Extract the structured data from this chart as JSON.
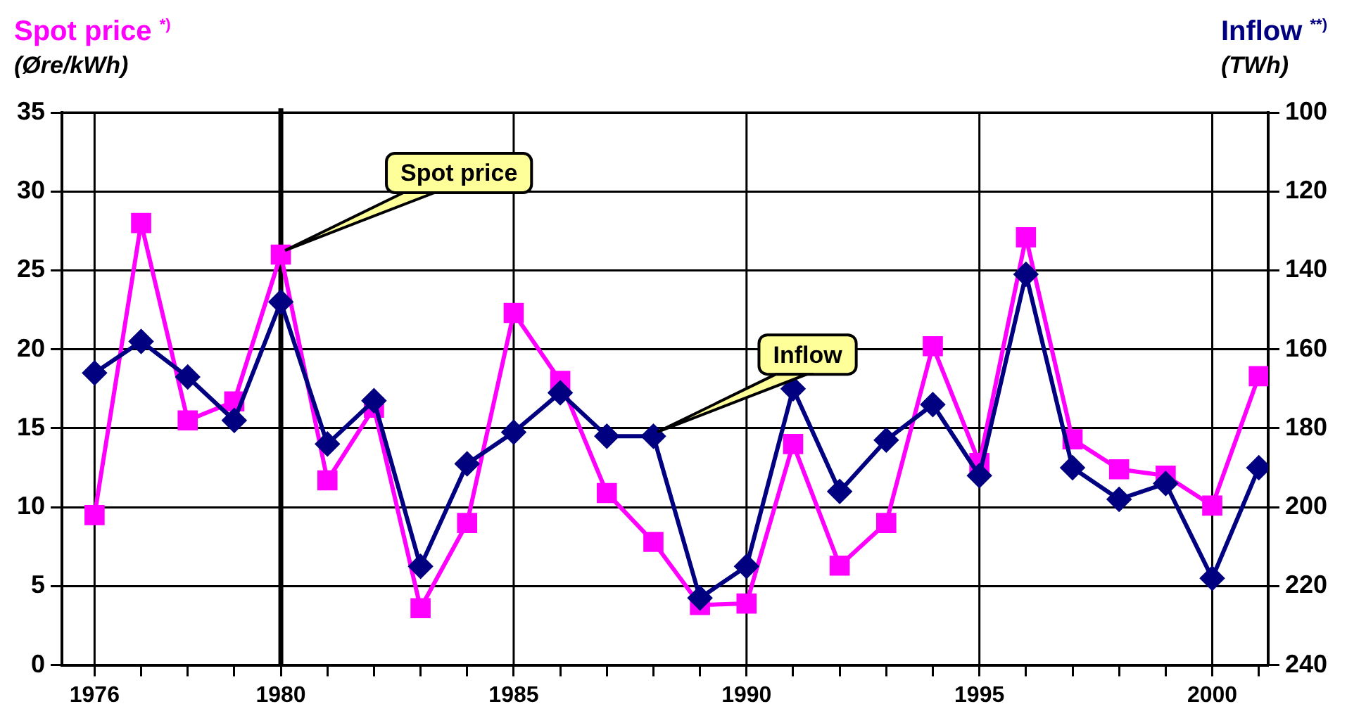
{
  "chart_data": {
    "type": "line",
    "ylabel": "Spot price $^{*)}$\n(Øre/kWh)",
    "y2label": "Inflow $^{**)}$\n(TWh)",
    "x": [
      1976,
      1977,
      1978,
      1979,
      1980,
      1981,
      1982,
      1983,
      1984,
      1985,
      1986,
      1987,
      1988,
      1989,
      1990,
      1991,
      1992,
      1993,
      1994,
      1995,
      1996,
      1997,
      1998,
      1999,
      2000,
      2001
    ],
    "series": [
      {
        "color": "#ff00ff",
        "marker": "square",
        "values": [
          9.5,
          28,
          15.5,
          16.7,
          26,
          11.7,
          16.3,
          3.6,
          9,
          22.3,
          18,
          10.9,
          7.8,
          3.8,
          3.9,
          14,
          6.3,
          9,
          20.2,
          12.8,
          27.1,
          14.3,
          12.4,
          12,
          10.1,
          18.3
        ]
      },
      {
        "color": "#000080",
        "marker": "diamond",
        "axis": "y2",
        "values": [
          166,
          158,
          167,
          178,
          148,
          184,
          173,
          215,
          189,
          181,
          171,
          182,
          182,
          223,
          215,
          170,
          196,
          183,
          174,
          192,
          141,
          190,
          198,
          194,
          218,
          190
        ]
      }
    ],
    "xlim": [
      1975.3,
      2001.2
    ],
    "xticks": [
      1976,
      {
        "value": 1977,
        "label": null
      },
      {
        "value": 1978,
        "label": null
      },
      {
        "value": 1979,
        "label": null
      },
      1980,
      {
        "value": 1981,
        "label": null
      },
      {
        "value": 1982,
        "label": null
      },
      {
        "value": 1983,
        "label": null
      },
      {
        "value": 1984,
        "label": null
      },
      1985,
      {
        "value": 1986,
        "label": null
      },
      {
        "value": 1987,
        "label": null
      },
      {
        "value": 1988,
        "label": null
      },
      {
        "value": 1989,
        "label": null
      },
      1990,
      {
        "value": 1991,
        "label": null
      },
      {
        "value": 1992,
        "label": null
      },
      {
        "value": 1993,
        "label": null
      },
      {
        "value": 1994,
        "label": null
      },
      1995,
      {
        "value": 1996,
        "label": null
      },
      {
        "value": 1997,
        "label": null
      },
      {
        "value": 1998,
        "label": null
      },
      {
        "value": 1999,
        "label": null
      },
      2000,
      {
        "value": 2001,
        "label": null
      }
    ],
    "ylim": [
      0,
      35
    ],
    "yticks": [
      0,
      5,
      10,
      15,
      20,
      25,
      30,
      35
    ],
    "y2lim": [
      240,
      100
    ],
    "y2ticks": [
      100,
      120,
      140,
      160,
      180,
      200,
      220,
      240
    ],
    "ref_lines": [
      {
        "axis": "x",
        "value": 1980,
        "label": null,
        "color": "#000000"
      }
    ],
    "annotations": [
      {
        "text": "Spot price",
        "x": 1980,
        "y": 26
      },
      {
        "text": "Inflow",
        "x": 1988,
        "y": 14.5
      }
    ],
    "grid": true,
    "legend": false,
    "line_style": "solid"
  }
}
